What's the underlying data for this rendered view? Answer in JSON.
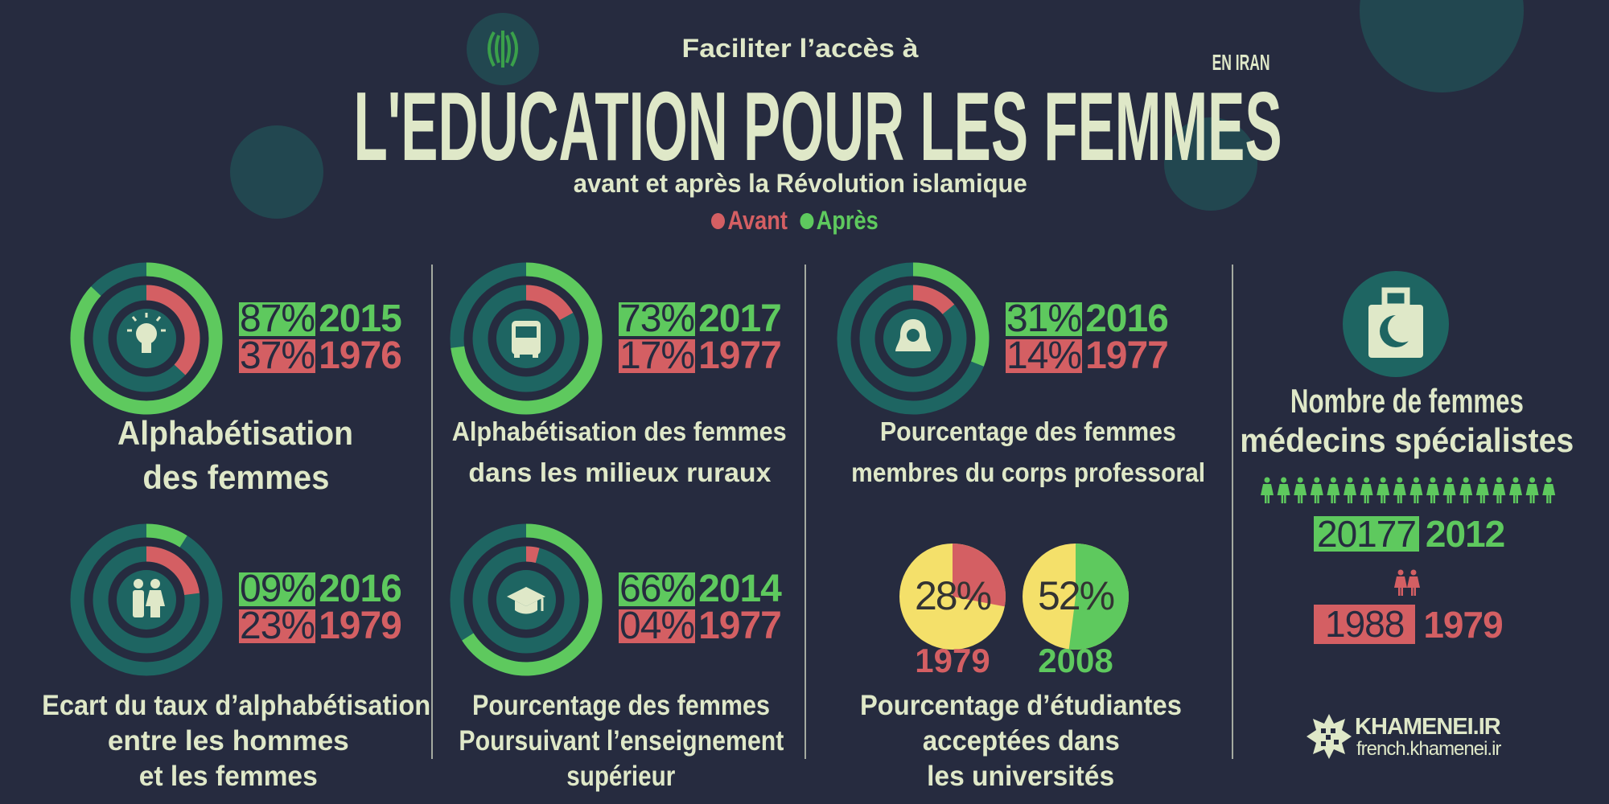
{
  "header": {
    "kicker": "Faciliter l’accès à",
    "title": "L'EDUCATION POUR LES FEMMES",
    "region": "EN IRAN",
    "subtitle": "avant et après la Révolution islamique",
    "legend": {
      "before": "Avant",
      "after": "Après"
    }
  },
  "colors": {
    "background": "#262b3f",
    "after": "#5ec95e",
    "before": "#d45f63",
    "track": "#1e6562",
    "text": "#dfe8c8",
    "pie_rest": "#f4e06a"
  },
  "chart_data": [
    {
      "type": "donut",
      "title_lines": [
        "Alphabétisation",
        "des femmes"
      ],
      "icon": "lightbulb-icon",
      "after": {
        "value": 87,
        "label": "87%",
        "year": "2015"
      },
      "before": {
        "value": 37,
        "label": "37%",
        "year": "1976"
      }
    },
    {
      "type": "donut",
      "title_lines": [
        "Alphabétisation des femmes",
        "dans les milieux ruraux"
      ],
      "icon": "bus-icon",
      "after": {
        "value": 73,
        "label": "73%",
        "year": "2017"
      },
      "before": {
        "value": 17,
        "label": "17%",
        "year": "1977"
      }
    },
    {
      "type": "donut",
      "title_lines": [
        "Pourcentage des femmes",
        "membres du corps professoral"
      ],
      "icon": "veiled-woman-icon",
      "after": {
        "value": 31,
        "label": "31%",
        "year": "2016"
      },
      "before": {
        "value": 14,
        "label": "14%",
        "year": "1977"
      }
    },
    {
      "type": "donut",
      "title_lines": [
        "Ecart du taux d’alphabétisation",
        "entre les hommes",
        "et les femmes"
      ],
      "icon": "man-woman-icon",
      "after": {
        "value": 9,
        "label": "09%",
        "year": "2016"
      },
      "before": {
        "value": 23,
        "label": "23%",
        "year": "1979"
      }
    },
    {
      "type": "donut",
      "title_lines": [
        "Pourcentage des femmes",
        "Poursuivant l’enseignement",
        "supérieur"
      ],
      "icon": "graduation-cap-icon",
      "after": {
        "value": 66,
        "label": "66%",
        "year": "2014"
      },
      "before": {
        "value": 4,
        "label": "04%",
        "year": "1977"
      }
    },
    {
      "type": "pie",
      "title_lines": [
        "Pourcentage d’étudiantes",
        "acceptées dans",
        "les universités"
      ],
      "before": {
        "value": 28,
        "label": "28%",
        "year": "1979"
      },
      "after": {
        "value": 52,
        "label": "52%",
        "year": "2008"
      }
    },
    {
      "type": "count",
      "title_lines": [
        "Nombre de femmes",
        "médecins spécialistes"
      ],
      "icon": "medical-bag-icon",
      "after": {
        "value": 20177,
        "label": "20177",
        "year": "2012"
      },
      "before": {
        "value": 1988,
        "label": "1988",
        "year": "1979"
      }
    }
  ],
  "logo": {
    "name": "KHAMENEI.IR",
    "url_text": "french.khamenei.ir"
  }
}
